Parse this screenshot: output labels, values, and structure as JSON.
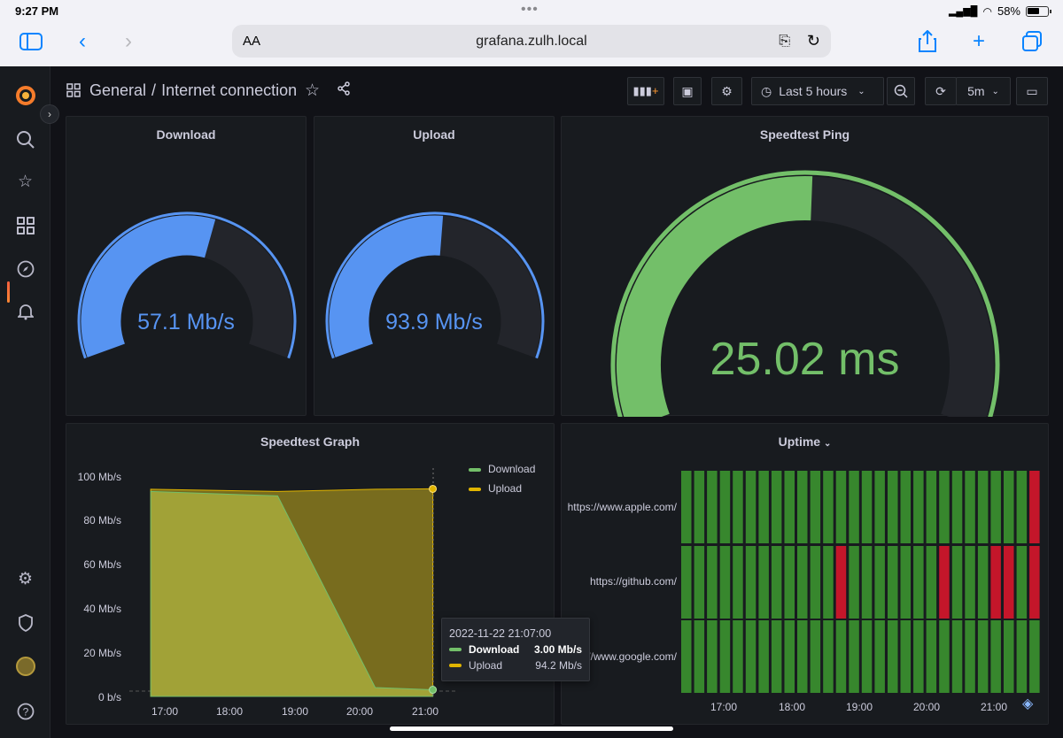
{
  "status_bar": {
    "time": "9:27 PM",
    "battery": "58%"
  },
  "safari": {
    "text_size": "AA",
    "url": "grafana.zulh.local"
  },
  "breadcrumb": {
    "folder": "General",
    "separator": "/",
    "dashboard": "Internet connection"
  },
  "toolbar": {
    "time_range": "Last 5 hours",
    "refresh_interval": "5m"
  },
  "panels": {
    "download": {
      "title": "Download",
      "value": "57.1 Mb/s",
      "fraction": 0.571,
      "color": "#5794f2"
    },
    "upload": {
      "title": "Upload",
      "value": "93.9 Mb/s",
      "fraction": 0.52,
      "color": "#5794f2"
    },
    "ping": {
      "title": "Speedtest Ping",
      "value": "25.02 ms",
      "fraction": 0.51,
      "color": "#73bf69"
    },
    "graph": {
      "title": "Speedtest Graph"
    },
    "uptime": {
      "title": "Uptime"
    }
  },
  "chart_data": [
    {
      "type": "area",
      "title": "Speedtest Graph",
      "y_ticks": [
        "100 Mb/s",
        "80 Mb/s",
        "60 Mb/s",
        "40 Mb/s",
        "20 Mb/s",
        "0 b/s"
      ],
      "x_ticks": [
        "17:00",
        "18:00",
        "19:00",
        "20:00",
        "21:00"
      ],
      "ylim": [
        0,
        100
      ],
      "series": [
        {
          "name": "Download",
          "color": "#73bf69",
          "x": [
            "16:47",
            "18:44",
            "20:14",
            "21:07"
          ],
          "values": [
            93,
            91,
            4,
            3.0
          ]
        },
        {
          "name": "Upload",
          "color": "#e0b400",
          "x": [
            "16:47",
            "18:44",
            "20:14",
            "21:07"
          ],
          "values": [
            94,
            93,
            94,
            94.2
          ]
        }
      ],
      "tooltip": {
        "time": "2022-11-22 21:07:00",
        "rows": [
          {
            "name": "Download",
            "value": "3.00 Mb/s"
          },
          {
            "name": "Upload",
            "value": "94.2 Mb/s"
          }
        ]
      }
    },
    {
      "type": "heatmap",
      "title": "Uptime",
      "rows": [
        "https://www.apple.com/",
        "https://github.com/",
        "https://www.google.com/"
      ],
      "x_ticks": [
        "17:00",
        "18:00",
        "19:00",
        "20:00",
        "21:00"
      ],
      "up_color": "#37872d",
      "down_color": "#c4162a",
      "status": [
        [
          1,
          1,
          1,
          1,
          1,
          1,
          1,
          1,
          1,
          1,
          1,
          1,
          1,
          1,
          1,
          1,
          1,
          1,
          1,
          1,
          1,
          1,
          1,
          1,
          1,
          1,
          1,
          0
        ],
        [
          1,
          1,
          1,
          1,
          1,
          1,
          1,
          1,
          1,
          1,
          1,
          1,
          0,
          1,
          1,
          1,
          1,
          1,
          1,
          1,
          0,
          1,
          1,
          1,
          0,
          0,
          1,
          0
        ],
        [
          1,
          1,
          1,
          1,
          1,
          1,
          1,
          1,
          1,
          1,
          1,
          1,
          1,
          1,
          1,
          1,
          1,
          1,
          1,
          1,
          1,
          1,
          1,
          1,
          1,
          1,
          1,
          1
        ]
      ]
    }
  ]
}
